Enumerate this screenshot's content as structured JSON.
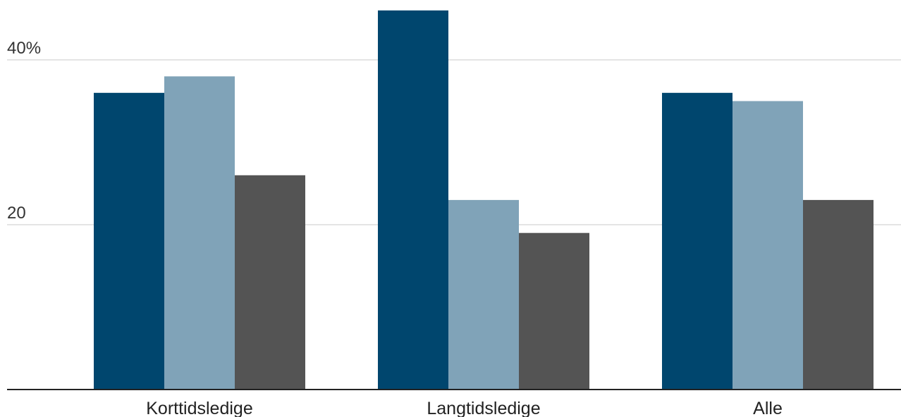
{
  "chart_data": {
    "type": "bar",
    "categories": [
      "Korttidsledige",
      "Langtidsledige",
      "Alle"
    ],
    "series": [
      {
        "color": "#00466e",
        "values": [
          36,
          46,
          36
        ]
      },
      {
        "color": "#80a3b8",
        "values": [
          38,
          23,
          35
        ]
      },
      {
        "color": "#545454",
        "values": [
          26,
          19,
          23
        ]
      }
    ],
    "yticks": [
      {
        "value": 20,
        "label": "20"
      },
      {
        "value": 40,
        "label": "40%"
      }
    ],
    "ylim": [
      0,
      46
    ],
    "grid": true,
    "gridColor": "#e4e4e4",
    "axisColor": "#222222"
  }
}
